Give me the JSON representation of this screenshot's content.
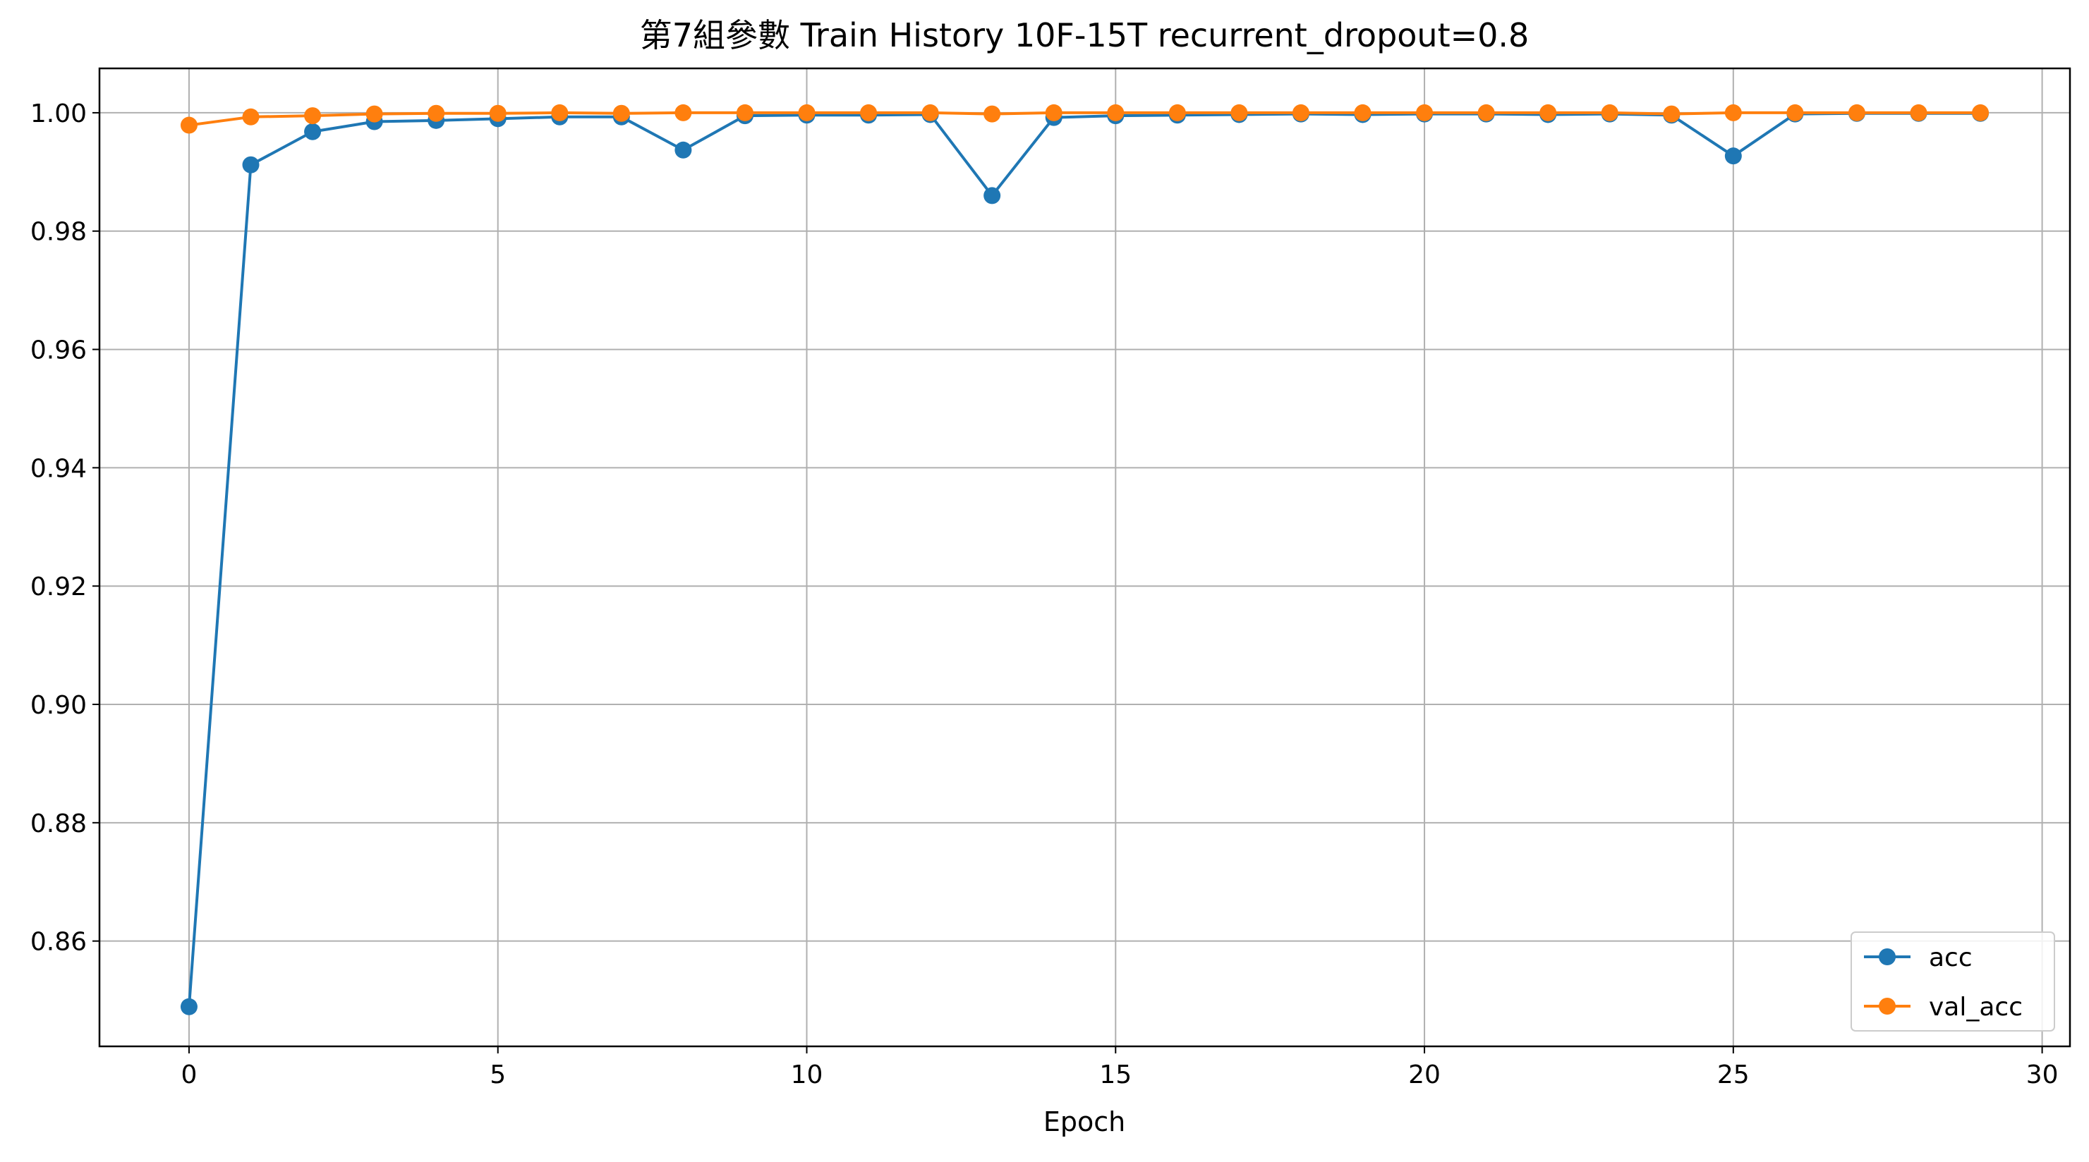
{
  "chart_data": {
    "type": "line",
    "title": "第7組參數 Train History 10F-15T recurrent_dropout=0.8",
    "xlabel": "Epoch",
    "ylabel": "",
    "xlim": [
      -1.45,
      30.45
    ],
    "ylim": [
      0.8422,
      1.0075
    ],
    "x_ticks": [
      0,
      5,
      10,
      15,
      20,
      25,
      30
    ],
    "y_ticks": [
      0.86,
      0.88,
      0.9,
      0.92,
      0.94,
      0.96,
      0.98,
      1.0
    ],
    "x_tick_labels": [
      "0",
      "5",
      "10",
      "15",
      "20",
      "25",
      "30"
    ],
    "y_tick_labels": [
      "0.86",
      "0.88",
      "0.90",
      "0.92",
      "0.94",
      "0.96",
      "0.98",
      "1.00"
    ],
    "grid": true,
    "legend_position": "lower-right",
    "x": [
      0,
      1,
      2,
      3,
      4,
      5,
      6,
      7,
      8,
      9,
      10,
      11,
      12,
      13,
      14,
      15,
      16,
      17,
      18,
      19,
      20,
      21,
      22,
      23,
      24,
      25,
      26,
      27,
      28,
      29
    ],
    "series": [
      {
        "name": "acc",
        "color": "#1f77b4",
        "marker": "circle",
        "values": [
          0.8489,
          0.9912,
          0.9968,
          0.9985,
          0.9987,
          0.999,
          0.9993,
          0.9993,
          0.9937,
          0.9995,
          0.9996,
          0.9996,
          0.9997,
          0.986,
          0.9992,
          0.9995,
          0.9996,
          0.9997,
          0.9998,
          0.9997,
          0.9998,
          0.9998,
          0.9997,
          0.9998,
          0.9996,
          0.9927,
          0.9998,
          0.9999,
          0.9999,
          0.9999
        ]
      },
      {
        "name": "val_acc",
        "color": "#ff7f0e",
        "marker": "circle",
        "values": [
          0.9979,
          0.9993,
          0.9995,
          0.9998,
          0.9999,
          0.9999,
          1.0,
          0.9999,
          1.0,
          1.0,
          1.0,
          1.0,
          1.0,
          0.9998,
          1.0,
          1.0,
          1.0,
          1.0,
          1.0,
          1.0,
          1.0,
          1.0,
          1.0,
          1.0,
          0.9998,
          1.0,
          1.0,
          1.0,
          1.0,
          1.0
        ]
      }
    ]
  }
}
